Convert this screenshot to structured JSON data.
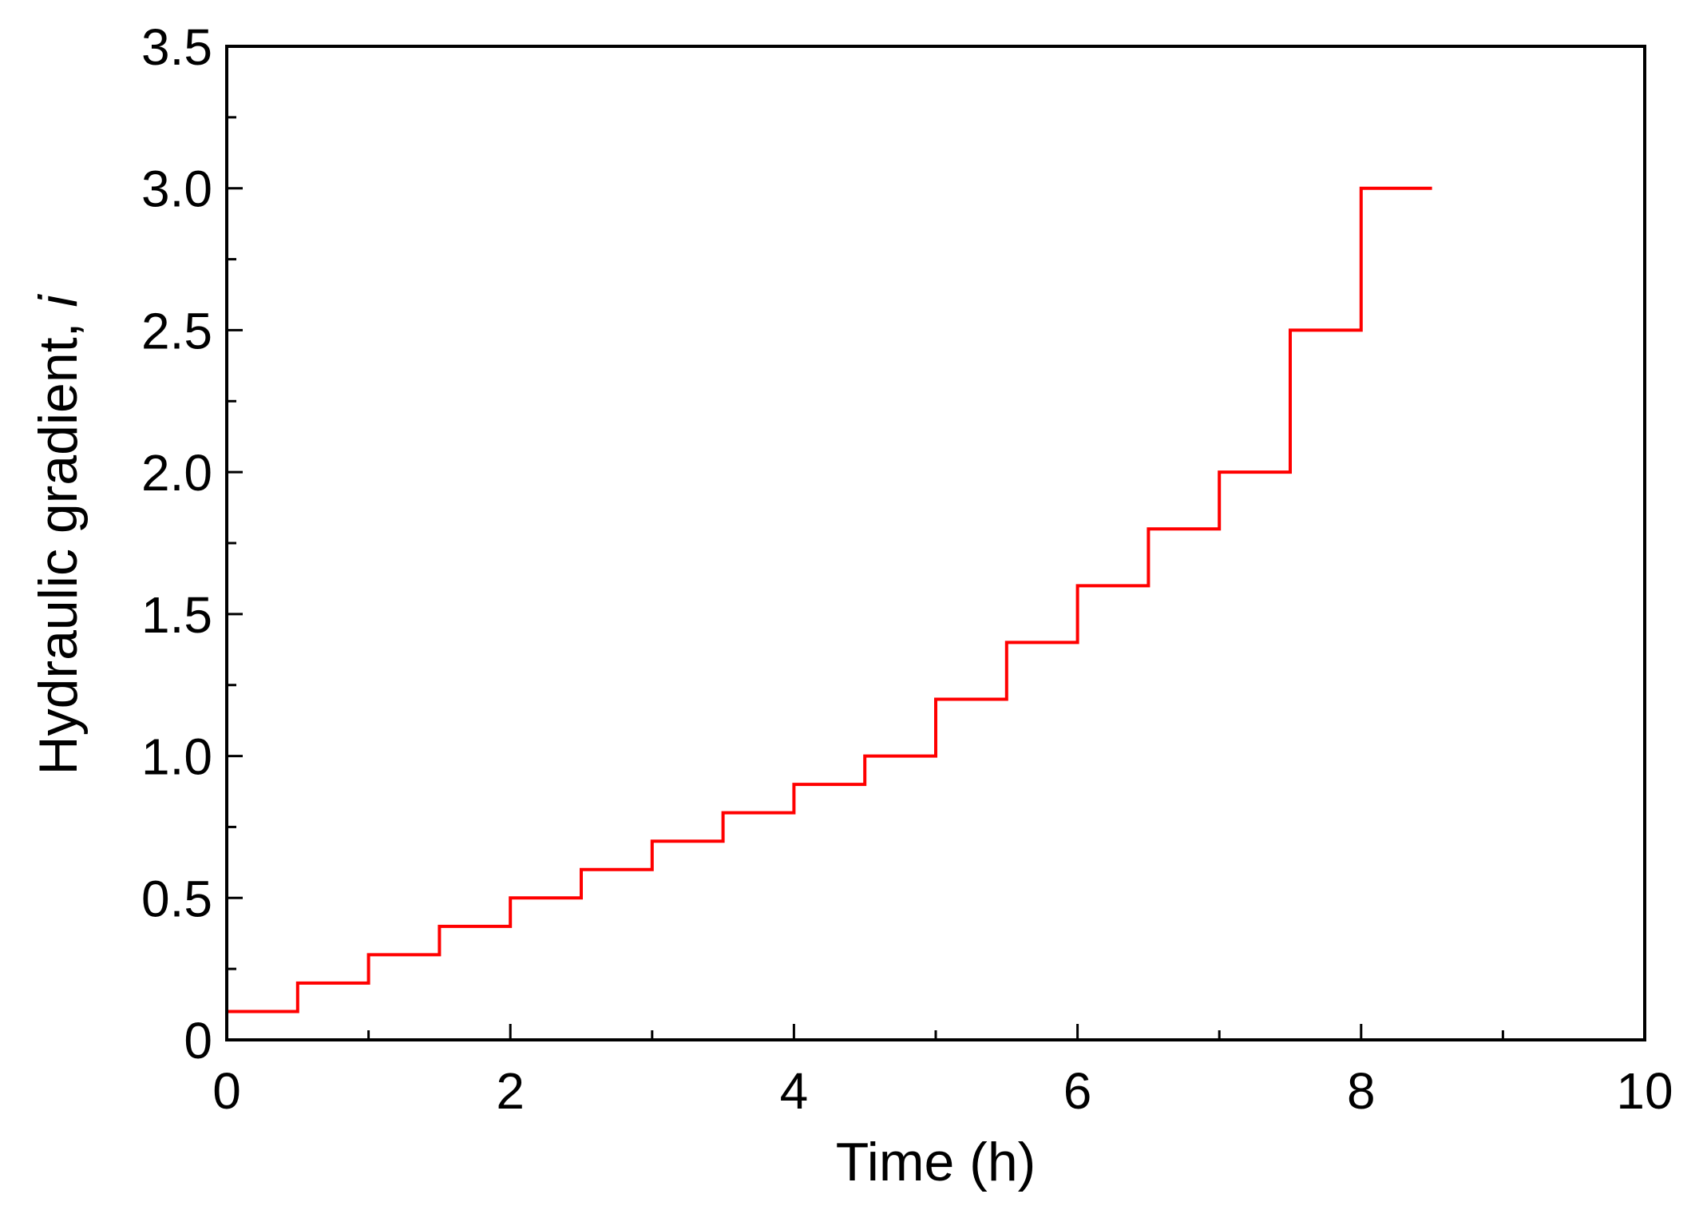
{
  "chart_data": {
    "type": "line",
    "step": true,
    "title": "",
    "xlabel": "Time (h)",
    "ylabel": "Hydraulic gradient, ",
    "ylabel_symbol": "i",
    "xlim": [
      0,
      10
    ],
    "ylim": [
      0,
      3.5
    ],
    "xticks": [
      0,
      2,
      4,
      6,
      8,
      10
    ],
    "xtick_labels": [
      "0",
      "2",
      "4",
      "6",
      "8",
      "10"
    ],
    "yticks": [
      0,
      0.5,
      1.0,
      1.5,
      2.0,
      2.5,
      3.0,
      3.5
    ],
    "ytick_labels": [
      "0",
      "0.5",
      "1.0",
      "1.5",
      "2.0",
      "2.5",
      "3.0",
      "3.5"
    ],
    "x_minor_step": 1,
    "y_minor_step": 0.25,
    "grid": false,
    "legend": "none",
    "series": [
      {
        "color": "#ff0000",
        "x": [
          0,
          0.5,
          1.0,
          1.5,
          2.0,
          2.5,
          3.0,
          3.5,
          4.0,
          4.5,
          5.0,
          5.5,
          6.0,
          6.5,
          7.0,
          7.5,
          8.0,
          8.5
        ],
        "y": [
          0.1,
          0.2,
          0.3,
          0.4,
          0.5,
          0.6,
          0.7,
          0.8,
          0.9,
          1.0,
          1.2,
          1.4,
          1.6,
          1.8,
          2.0,
          2.5,
          3.0,
          3.0
        ]
      }
    ]
  }
}
